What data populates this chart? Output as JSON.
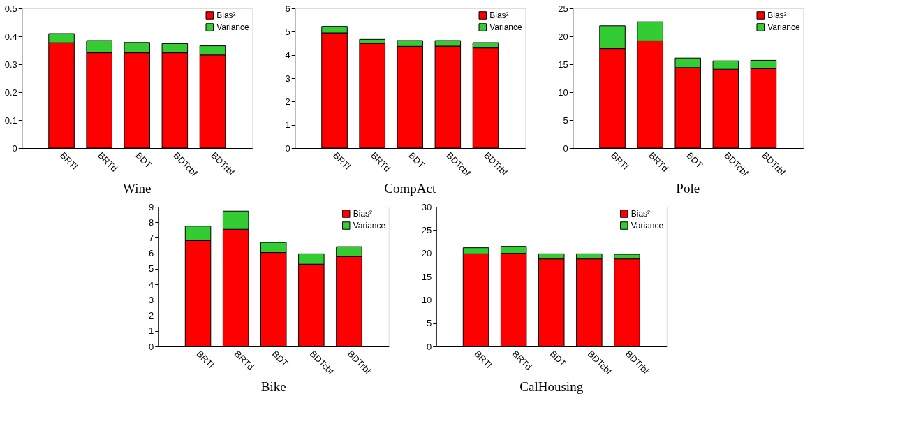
{
  "chart_data": [
    {
      "type": "bar",
      "stacked": true,
      "title": "Wine",
      "categories": [
        "BRTl",
        "BRTd",
        "BDT",
        "BDTcbf",
        "BDTrbf"
      ],
      "ylim": [
        0,
        0.5
      ],
      "yticks": [
        0,
        0.1,
        0.2,
        0.3,
        0.4,
        0.5
      ],
      "grid": false,
      "legend": "top right",
      "series": [
        {
          "name": "Bias²",
          "color": "#ff0000",
          "values": [
            0.377,
            0.341,
            0.341,
            0.341,
            0.333
          ]
        },
        {
          "name": "Variance",
          "color": "#33cc33",
          "values": [
            0.033,
            0.044,
            0.037,
            0.033,
            0.033
          ]
        }
      ]
    },
    {
      "type": "bar",
      "stacked": true,
      "title": "CompAct",
      "categories": [
        "BRTl",
        "BRTd",
        "BDT",
        "BDTcbf",
        "BDTrbf"
      ],
      "ylim": [
        0,
        6
      ],
      "yticks": [
        0,
        1,
        2,
        3,
        4,
        5,
        6
      ],
      "grid": false,
      "legend": "top right",
      "series": [
        {
          "name": "Bias²",
          "color": "#ff0000",
          "values": [
            4.95,
            4.5,
            4.37,
            4.38,
            4.3
          ]
        },
        {
          "name": "Variance",
          "color": "#33cc33",
          "values": [
            0.28,
            0.17,
            0.25,
            0.24,
            0.23
          ]
        }
      ]
    },
    {
      "type": "bar",
      "stacked": true,
      "title": "Pole",
      "categories": [
        "BRTl",
        "BRTd",
        "BDT",
        "BDTcbf",
        "BDTrbf"
      ],
      "ylim": [
        0,
        25
      ],
      "yticks": [
        0,
        5,
        10,
        15,
        20,
        25
      ],
      "grid": false,
      "legend": "top right",
      "series": [
        {
          "name": "Bias²",
          "color": "#ff0000",
          "values": [
            17.8,
            19.2,
            14.4,
            14.1,
            14.2
          ]
        },
        {
          "name": "Variance",
          "color": "#33cc33",
          "values": [
            4.1,
            3.4,
            1.7,
            1.5,
            1.5
          ]
        }
      ]
    },
    {
      "type": "bar",
      "stacked": true,
      "title": "Bike",
      "categories": [
        "BRTl",
        "BRTd",
        "BDT",
        "BDTcbf",
        "BDTrbf"
      ],
      "ylim": [
        0,
        9
      ],
      "yticks": [
        0,
        1,
        2,
        3,
        4,
        5,
        6,
        7,
        8,
        9
      ],
      "grid": false,
      "legend": "top right",
      "series": [
        {
          "name": "Bias²",
          "color": "#ff0000",
          "values": [
            6.82,
            7.55,
            6.05,
            5.3,
            5.8
          ]
        },
        {
          "name": "Variance",
          "color": "#33cc33",
          "values": [
            0.93,
            1.17,
            0.65,
            0.67,
            0.63
          ]
        }
      ]
    },
    {
      "type": "bar",
      "stacked": true,
      "title": "CalHousing",
      "categories": [
        "BRTl",
        "BRTd",
        "BDT",
        "BDTcbf",
        "BDTrbf"
      ],
      "ylim": [
        0,
        30
      ],
      "yticks": [
        0,
        5,
        10,
        15,
        20,
        25,
        30
      ],
      "grid": false,
      "legend": "top right",
      "series": [
        {
          "name": "Bias²",
          "color": "#ff0000",
          "values": [
            19.9,
            20.0,
            18.8,
            18.8,
            18.8
          ]
        },
        {
          "name": "Variance",
          "color": "#33cc33",
          "values": [
            1.3,
            1.5,
            1.1,
            1.1,
            1.0
          ]
        }
      ]
    }
  ]
}
